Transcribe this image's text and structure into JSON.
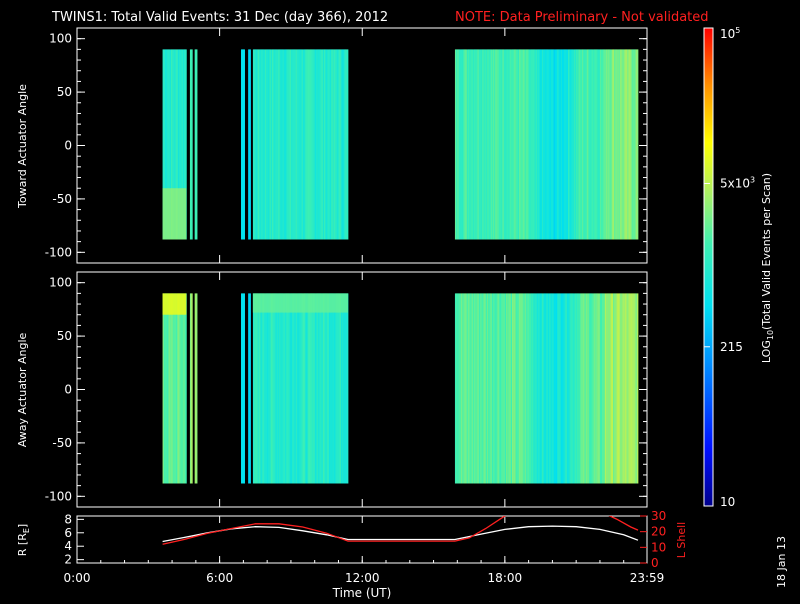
{
  "title": "TWINS1: Total Valid Events: 31 Dec (day 366), 2012",
  "note": "NOTE: Data Preliminary - Not validated",
  "date_stamp": "18 Jan 13",
  "colors": {
    "background": "#000000",
    "axes": "#ffffff",
    "note": "#ff2020",
    "ephem_r": "#ffffff",
    "ephem_lshell": "#ff2020"
  },
  "colorbar": {
    "label": "LOG10(Total Valid Events per Scan)",
    "label_parts": [
      "LOG",
      "10",
      "(Total Valid Events per Scan)"
    ],
    "ticks": [
      {
        "value": 10,
        "text": "10"
      },
      {
        "value": 215,
        "text": "215"
      },
      {
        "value": 5000,
        "text": "5x10",
        "sup": "3"
      },
      {
        "value": 100000,
        "text": "10",
        "sup": "5"
      }
    ],
    "scale": "log",
    "range": [
      10,
      100000
    ]
  },
  "chart_data": [
    {
      "type": "heatmap",
      "ylabel": "Toward Actuator Angle",
      "ylim": [
        -110,
        110
      ],
      "yticks": [
        -100,
        -50,
        0,
        50,
        100
      ],
      "y_range": [
        -88,
        90
      ],
      "x_range_hours": [
        0,
        23.98
      ],
      "data_blocks_hours": [
        [
          3.6,
          4.6
        ],
        [
          4.75,
          4.85
        ],
        [
          4.95,
          5.05
        ],
        [
          6.9,
          7.05
        ],
        [
          7.2,
          7.3
        ],
        [
          7.4,
          11.4
        ],
        [
          15.9,
          23.6
        ]
      ],
      "typical_log_value": [
        3.0,
        3.3,
        3.0,
        2.7,
        2.6,
        3.0,
        3.2
      ]
    },
    {
      "type": "heatmap",
      "ylabel": "Away Actuator Angle",
      "ylim": [
        -110,
        110
      ],
      "yticks": [
        -100,
        -50,
        0,
        50,
        100
      ],
      "y_range": [
        -88,
        90
      ],
      "x_range_hours": [
        0,
        23.98
      ],
      "data_blocks_hours": [
        [
          3.6,
          4.6
        ],
        [
          4.75,
          4.85
        ],
        [
          4.95,
          5.05
        ],
        [
          6.9,
          7.05
        ],
        [
          7.2,
          7.3
        ],
        [
          7.4,
          11.4
        ],
        [
          15.9,
          23.6
        ]
      ],
      "typical_log_value": [
        3.3,
        3.5,
        3.5,
        2.7,
        2.6,
        3.0,
        3.3
      ]
    },
    {
      "type": "line",
      "xlabel": "Time (UT)",
      "xticks": [
        "0:00",
        "6:00",
        "12:00",
        "18:00",
        "23:59"
      ],
      "xtick_hours": [
        0,
        6,
        12,
        18,
        23.98
      ],
      "ylabel": "R [RE]",
      "ylabel_parts": [
        "R [R",
        "E",
        "]"
      ],
      "ylim": [
        1.5,
        8.5
      ],
      "yticks": [
        2,
        4,
        6,
        8
      ],
      "y2label": "L Shell",
      "y2lim": [
        0,
        30
      ],
      "y2ticks": [
        0,
        10,
        20,
        30
      ],
      "series": [
        {
          "axis": "left",
          "x": [
            3.6,
            4.5,
            5.5,
            6.5,
            7.5,
            8.5,
            9.5,
            10.5,
            11.4,
            12,
            13,
            14,
            15,
            15.9,
            17,
            18,
            19,
            20,
            21,
            22,
            23,
            23.6
          ],
          "values": [
            4.7,
            5.3,
            6.0,
            6.6,
            6.9,
            6.8,
            6.3,
            5.7,
            5.0,
            5.0,
            5.0,
            5.0,
            5.0,
            5.0,
            5.8,
            6.5,
            6.9,
            7.0,
            6.9,
            6.5,
            5.7,
            4.9
          ]
        },
        {
          "axis": "right",
          "x": [
            3.6,
            4.5,
            5.5,
            6.5,
            7.5,
            8.5,
            9.5,
            10.5,
            11.4,
            12,
            13,
            14,
            15,
            15.9,
            16.5,
            17.2,
            17.8,
            18.3,
            22,
            22.7,
            23.3,
            23.6
          ],
          "values": [
            12,
            15,
            19,
            22,
            25,
            25,
            23,
            19,
            14,
            14,
            14,
            14,
            14,
            14,
            16,
            22,
            28,
            33,
            33,
            28,
            23,
            21
          ]
        }
      ]
    }
  ]
}
